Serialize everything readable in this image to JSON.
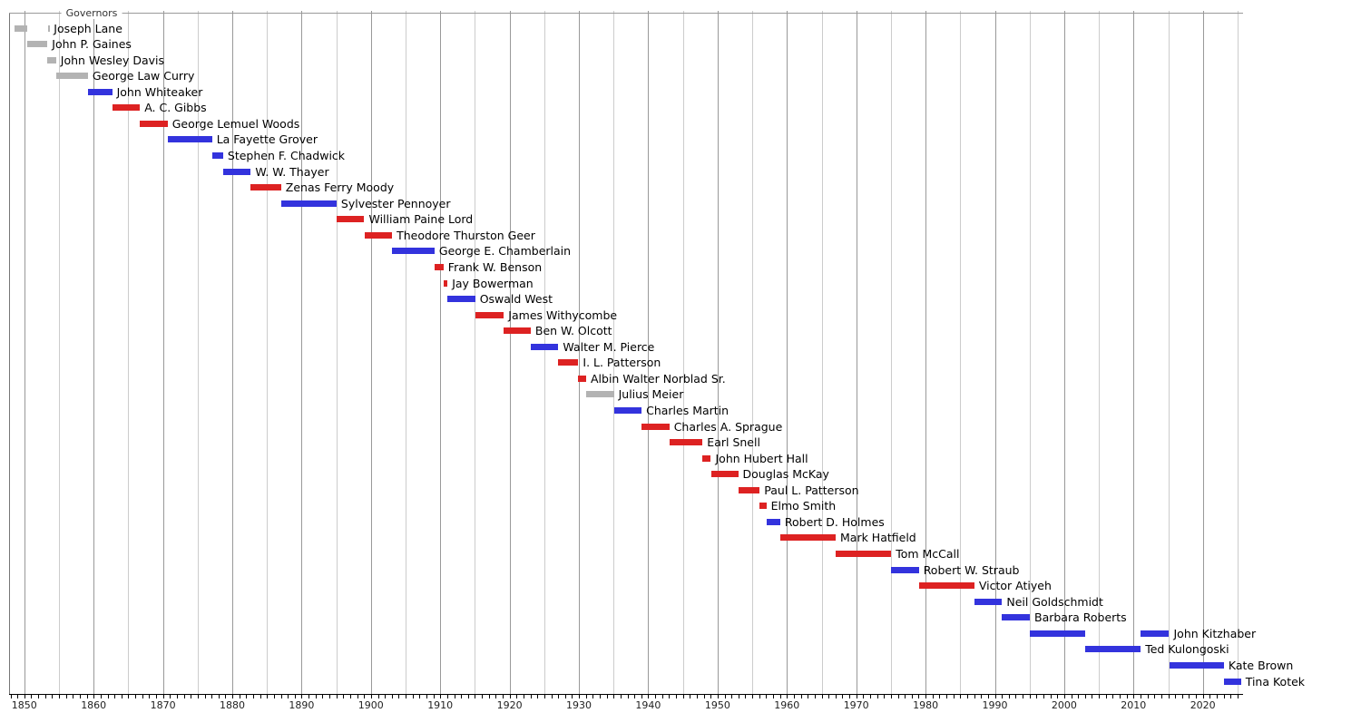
{
  "chart_data": {
    "type": "bar",
    "variant": "horizontal-timeline-gantt",
    "title": "Governors",
    "layout_hints": {
      "grid": "vertical gridlines every 5 years, darker each decade",
      "bars": "one row per governor, label text to the right of bar end",
      "legend_position": "none"
    },
    "colors": {
      "blue": "#3333dd",
      "red": "#dd2222",
      "gray": "#b3b3b3",
      "grid_major": "#999999",
      "grid_minor": "#cccccc",
      "plot_border": "#999999",
      "axis": "#000000"
    },
    "axis": {
      "xmin": 1847.8,
      "xmax": 2025.8,
      "tick_interval_years": 1,
      "gridline_interval_years": 5,
      "label_years": [
        1850,
        1860,
        1870,
        1880,
        1890,
        1900,
        1910,
        1920,
        1930,
        1940,
        1950,
        1960,
        1970,
        1980,
        1990,
        2000,
        2010,
        2020
      ]
    },
    "governors": [
      {
        "name": "Joseph Lane",
        "color": "gray",
        "segments": [
          [
            1848.63,
            1850.46
          ],
          [
            1853.37,
            1853.6
          ]
        ]
      },
      {
        "name": "John P. Gaines",
        "color": "gray",
        "segments": [
          [
            1850.46,
            1853.33
          ]
        ]
      },
      {
        "name": "John Wesley Davis",
        "color": "gray",
        "segments": [
          [
            1853.33,
            1854.58
          ]
        ]
      },
      {
        "name": "George Law Curry",
        "color": "gray",
        "segments": [
          [
            1854.58,
            1859.17
          ]
        ]
      },
      {
        "name": "John Whiteaker",
        "color": "blue",
        "segments": [
          [
            1859.17,
            1862.67
          ]
        ]
      },
      {
        "name": "A. C. Gibbs",
        "color": "red",
        "segments": [
          [
            1862.67,
            1866.67
          ]
        ]
      },
      {
        "name": "George Lemuel Woods",
        "color": "red",
        "segments": [
          [
            1866.67,
            1870.67
          ]
        ]
      },
      {
        "name": "La Fayette Grover",
        "color": "blue",
        "segments": [
          [
            1870.67,
            1877.08
          ]
        ]
      },
      {
        "name": "Stephen F. Chadwick",
        "color": "blue",
        "segments": [
          [
            1877.08,
            1878.67
          ]
        ]
      },
      {
        "name": "W. W. Thayer",
        "color": "blue",
        "segments": [
          [
            1878.67,
            1882.67
          ]
        ]
      },
      {
        "name": "Zenas Ferry Moody",
        "color": "red",
        "segments": [
          [
            1882.67,
            1887.04
          ]
        ]
      },
      {
        "name": "Sylvester Pennoyer",
        "color": "blue",
        "segments": [
          [
            1887.04,
            1895.04
          ]
        ]
      },
      {
        "name": "William Paine Lord",
        "color": "red",
        "segments": [
          [
            1895.04,
            1899.04
          ]
        ]
      },
      {
        "name": "Theodore Thurston Geer",
        "color": "red",
        "segments": [
          [
            1899.04,
            1903.04
          ]
        ]
      },
      {
        "name": "George E. Chamberlain",
        "color": "blue",
        "segments": [
          [
            1903.04,
            1909.17
          ]
        ]
      },
      {
        "name": "Frank W. Benson",
        "color": "red",
        "segments": [
          [
            1909.17,
            1910.46
          ]
        ]
      },
      {
        "name": "Jay Bowerman",
        "color": "red",
        "segments": [
          [
            1910.46,
            1911.04
          ]
        ]
      },
      {
        "name": "Oswald West",
        "color": "blue",
        "segments": [
          [
            1911.04,
            1915.04
          ]
        ]
      },
      {
        "name": "James Withycombe",
        "color": "red",
        "segments": [
          [
            1915.04,
            1919.17
          ]
        ]
      },
      {
        "name": "Ben W. Olcott",
        "color": "red",
        "segments": [
          [
            1919.17,
            1923.04
          ]
        ]
      },
      {
        "name": "Walter M. Pierce",
        "color": "blue",
        "segments": [
          [
            1923.04,
            1927.04
          ]
        ]
      },
      {
        "name": "I. L. Patterson",
        "color": "red",
        "segments": [
          [
            1927.04,
            1929.92
          ]
        ]
      },
      {
        "name": "Albin Walter Norblad Sr.",
        "color": "red",
        "segments": [
          [
            1929.92,
            1931.04
          ]
        ]
      },
      {
        "name": "Julius Meier",
        "color": "gray",
        "segments": [
          [
            1931.04,
            1935.04
          ]
        ]
      },
      {
        "name": "Charles Martin",
        "color": "blue",
        "segments": [
          [
            1935.04,
            1939.04
          ]
        ]
      },
      {
        "name": "Charles A. Sprague",
        "color": "red",
        "segments": [
          [
            1939.04,
            1943.04
          ]
        ]
      },
      {
        "name": "Earl Snell",
        "color": "red",
        "segments": [
          [
            1943.04,
            1947.83
          ]
        ]
      },
      {
        "name": "John Hubert Hall",
        "color": "red",
        "segments": [
          [
            1947.83,
            1949.04
          ]
        ]
      },
      {
        "name": "Douglas McKay",
        "color": "red",
        "segments": [
          [
            1949.04,
            1952.96
          ]
        ]
      },
      {
        "name": "Paul L. Patterson",
        "color": "red",
        "segments": [
          [
            1952.96,
            1956.08
          ]
        ]
      },
      {
        "name": "Elmo Smith",
        "color": "red",
        "segments": [
          [
            1956.08,
            1957.04
          ]
        ]
      },
      {
        "name": "Robert D. Holmes",
        "color": "blue",
        "segments": [
          [
            1957.04,
            1959.04
          ]
        ]
      },
      {
        "name": "Mark Hatfield",
        "color": "red",
        "segments": [
          [
            1959.04,
            1967.04
          ]
        ]
      },
      {
        "name": "Tom McCall",
        "color": "red",
        "segments": [
          [
            1967.04,
            1975.04
          ]
        ]
      },
      {
        "name": "Robert W. Straub",
        "color": "blue",
        "segments": [
          [
            1975.04,
            1979.04
          ]
        ]
      },
      {
        "name": "Victor Atiyeh",
        "color": "red",
        "segments": [
          [
            1979.04,
            1987.04
          ]
        ]
      },
      {
        "name": "Neil Goldschmidt",
        "color": "blue",
        "segments": [
          [
            1987.04,
            1991.04
          ]
        ]
      },
      {
        "name": "Barbara Roberts",
        "color": "blue",
        "segments": [
          [
            1991.04,
            1995.04
          ]
        ]
      },
      {
        "name": "John Kitzhaber",
        "color": "blue",
        "segments": [
          [
            1995.04,
            2003.04
          ],
          [
            2011.04,
            2015.13
          ]
        ]
      },
      {
        "name": "Ted Kulongoski",
        "color": "blue",
        "segments": [
          [
            2003.04,
            2011.04
          ]
        ]
      },
      {
        "name": "Kate Brown",
        "color": "blue",
        "segments": [
          [
            2015.13,
            2023.04
          ]
        ]
      },
      {
        "name": "Tina Kotek",
        "color": "blue",
        "segments": [
          [
            2023.04,
            2025.5
          ]
        ]
      }
    ]
  }
}
